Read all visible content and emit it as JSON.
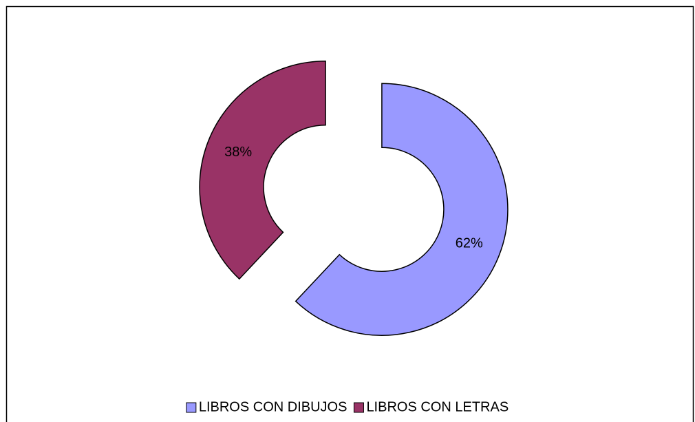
{
  "chart_data": {
    "type": "doughnut",
    "categories": [
      "LIBROS CON DIBUJOS",
      "LIBROS CON LETRAS"
    ],
    "values": [
      62,
      38
    ],
    "value_labels": [
      "62%",
      "38%"
    ],
    "colors": [
      "#9999ff",
      "#993366"
    ],
    "legend": "bottom"
  }
}
